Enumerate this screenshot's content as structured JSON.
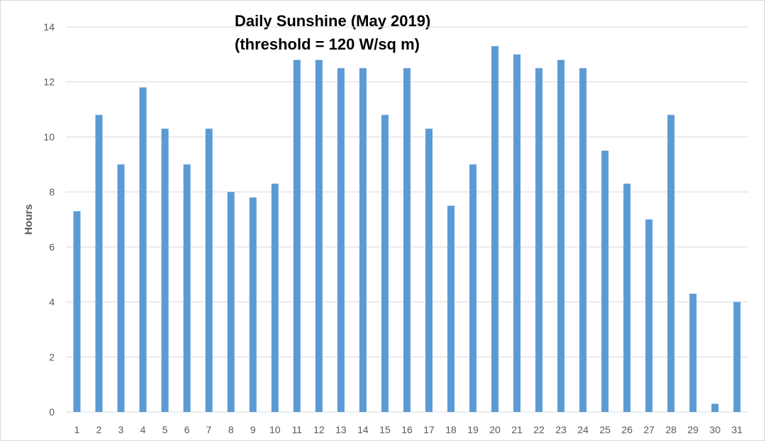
{
  "chart_data": {
    "type": "bar",
    "title": "Daily Sunshine (May 2019)",
    "subtitle": "(threshold = 120 W/sq m)",
    "xlabel": "",
    "ylabel": "Hours",
    "categories": [
      "1",
      "2",
      "3",
      "4",
      "5",
      "6",
      "7",
      "8",
      "9",
      "10",
      "11",
      "12",
      "13",
      "14",
      "15",
      "16",
      "17",
      "18",
      "19",
      "20",
      "21",
      "22",
      "23",
      "24",
      "25",
      "26",
      "27",
      "28",
      "29",
      "30",
      "31"
    ],
    "values": [
      7.3,
      10.8,
      9.0,
      11.8,
      10.3,
      9.0,
      10.3,
      8.0,
      7.8,
      8.3,
      12.8,
      12.8,
      12.5,
      12.5,
      10.8,
      12.5,
      10.3,
      7.5,
      9.0,
      13.3,
      13.0,
      12.5,
      12.8,
      12.5,
      9.5,
      8.3,
      7.0,
      10.8,
      4.3,
      0.3,
      4.0
    ],
    "ylim": [
      0,
      14
    ],
    "yticks": [
      0,
      2,
      4,
      6,
      8,
      10,
      12,
      14
    ],
    "grid": true,
    "legend": "none",
    "colors": {
      "bar": "#5b9bd5",
      "grid": "#d9d9d9",
      "tick_text": "#595959"
    }
  }
}
